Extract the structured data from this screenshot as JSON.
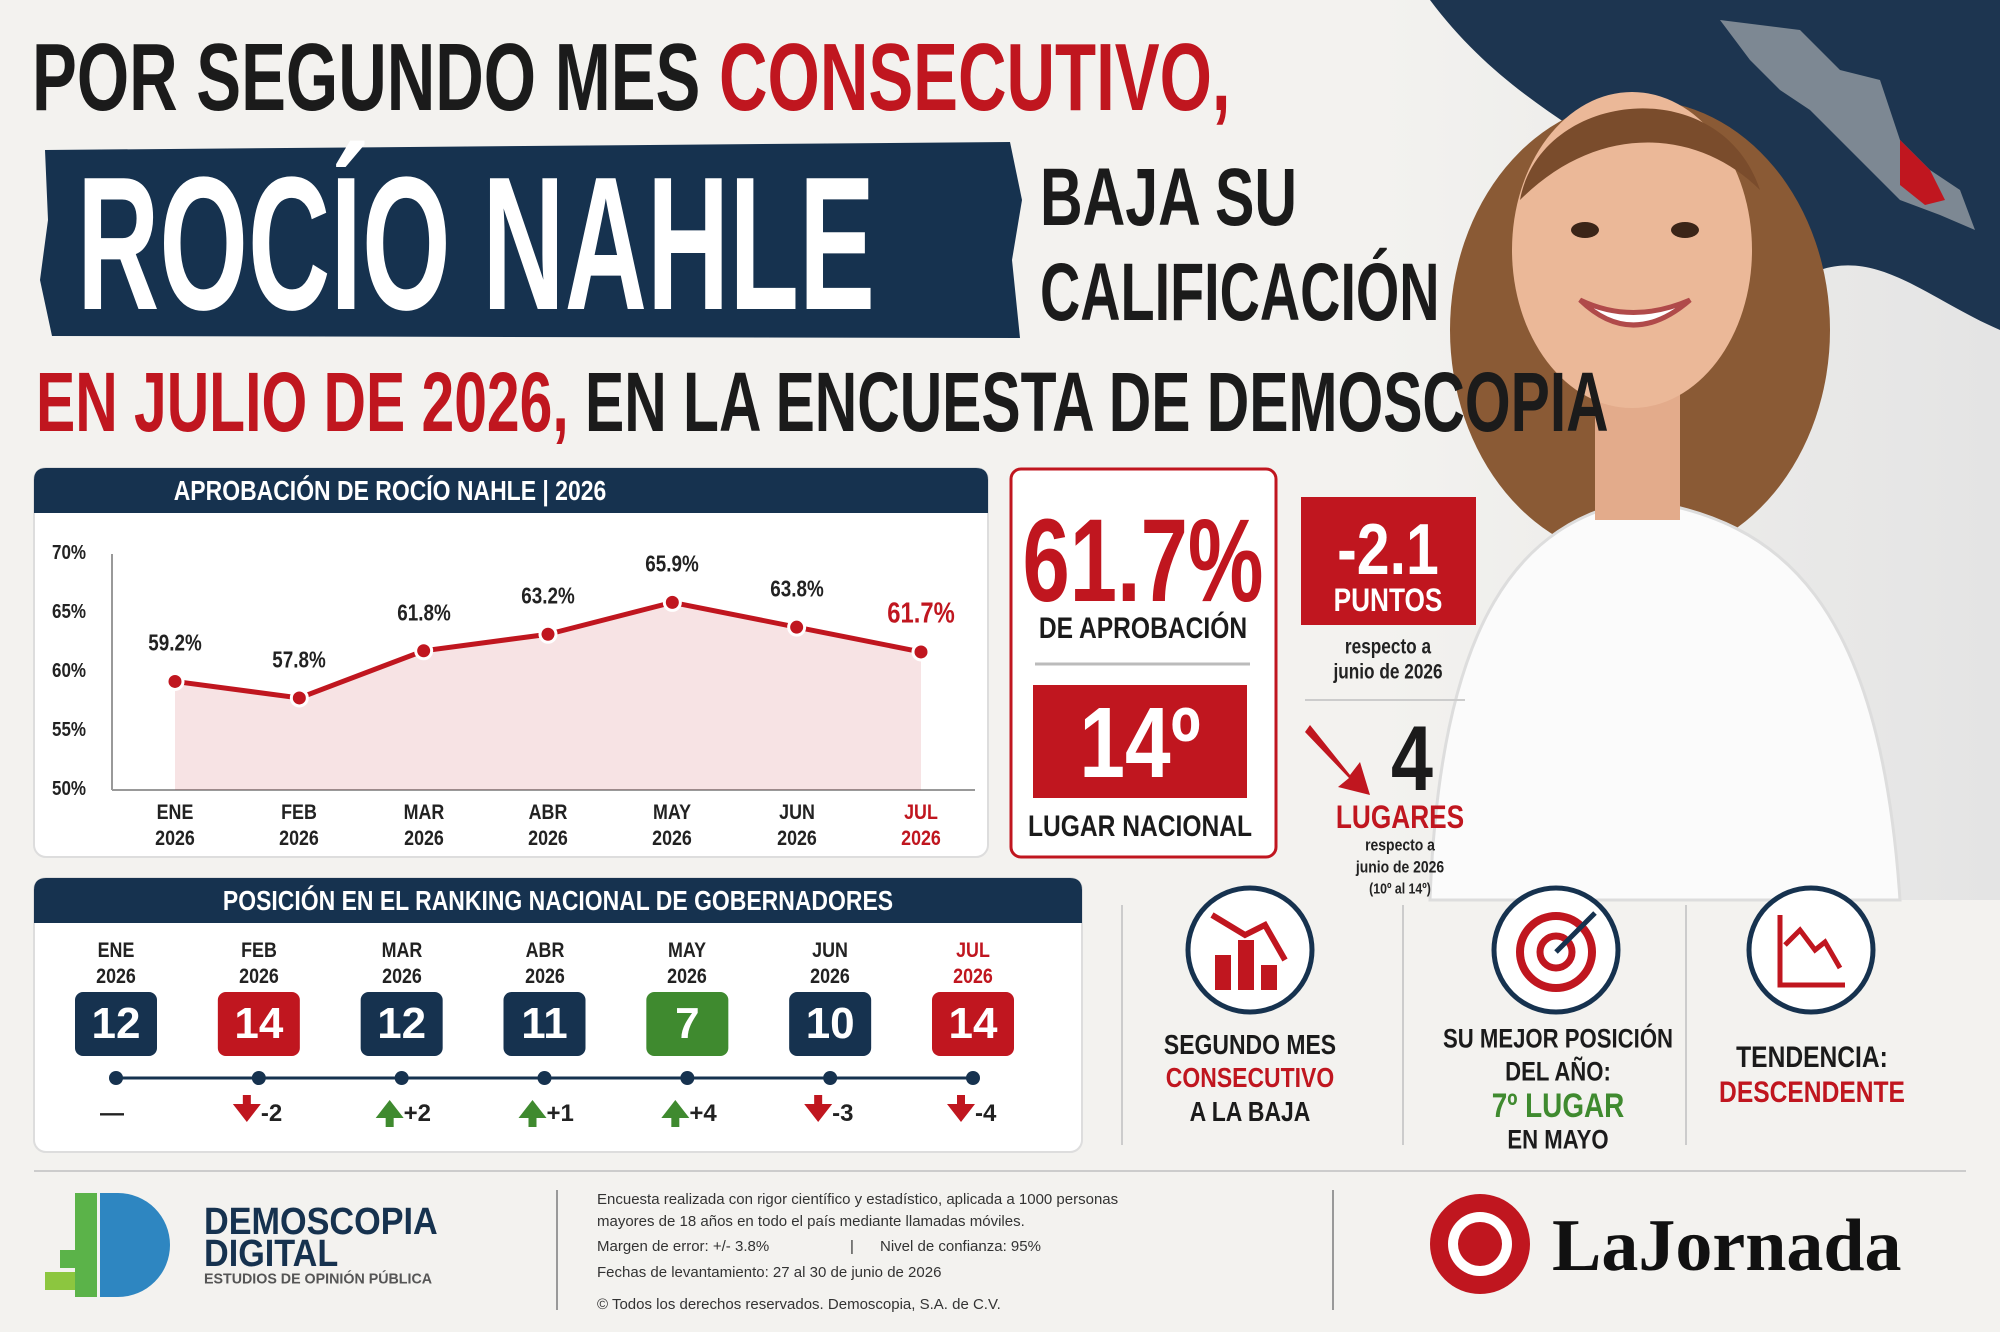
{
  "header": {
    "line1_a": "POR SEGUNDO MES ",
    "line1_b": "CONSECUTIVO,",
    "name": "ROCÍO NAHLE",
    "line2_a": "BAJA SU",
    "line2_b": "CALIFICACIÓN",
    "line3_a": "EN JULIO DE 2026,",
    "line3_b": " EN LA ENCUESTA DE DEMOSCOPIA"
  },
  "chart_data": {
    "type": "line",
    "title": "APROBACIÓN DE ROCÍO NAHLE | 2026",
    "categories": [
      "ENE 2026",
      "FEB 2026",
      "MAR 2026",
      "ABR 2026",
      "MAY 2026",
      "JUN 2026",
      "JUL 2026"
    ],
    "series": [
      {
        "name": "Aprobación",
        "color": "#c0161f",
        "values": [
          59.2,
          57.8,
          61.8,
          63.2,
          65.9,
          63.8,
          61.7
        ],
        "value_labels": [
          "59.2%",
          "57.8%",
          "61.8%",
          "63.2%",
          "65.9%",
          "63.8%",
          "61.7%"
        ]
      }
    ],
    "ylim": [
      50,
      70
    ],
    "yticks": [
      {
        "value": 50,
        "label": "50%"
      },
      {
        "value": 55,
        "label": "55%"
      },
      {
        "value": 60,
        "label": "60%"
      },
      {
        "value": 65,
        "label": "65%"
      },
      {
        "value": 70,
        "label": "70%"
      }
    ],
    "grid": false
  },
  "stats": {
    "approval": "61.7%",
    "approval_label": "DE APROBACIÓN",
    "rank": "14º",
    "rank_label": "LUGAR NACIONAL",
    "change": "-2.1",
    "change_unit": "PUNTOS",
    "change_note_a": "respecto a",
    "change_note_b": "junio de 2026",
    "places": "4",
    "places_unit": "LUGARES",
    "places_note_a": "respecto a",
    "places_note_b": "junio de 2026",
    "places_detail": "(10º al 14º)"
  },
  "ranking": {
    "title": "POSICIÓN EN EL RANKING NACIONAL DE GOBERNADORES",
    "items": [
      {
        "period": "ENE 2026",
        "position": 12,
        "change": "—",
        "color": "#16324f"
      },
      {
        "period": "FEB 2026",
        "position": 14,
        "change": "-2",
        "color": "#c0161f"
      },
      {
        "period": "MAR 2026",
        "position": 12,
        "change": "+2",
        "color": "#16324f"
      },
      {
        "period": "ABR 2026",
        "position": 11,
        "change": "+1",
        "color": "#16324f"
      },
      {
        "period": "MAY 2026",
        "position": 7,
        "change": "+4",
        "color": "#3f8a2f"
      },
      {
        "period": "JUN 2026",
        "position": 10,
        "change": "-3",
        "color": "#16324f"
      },
      {
        "period": "JUL 2026",
        "position": 14,
        "change": "-4",
        "color": "#c0161f"
      }
    ]
  },
  "highlights": [
    {
      "a": "SEGUNDO MES",
      "b": "CONSECUTIVO",
      "c": "A LA BAJA"
    },
    {
      "a": "SU MEJOR POSICIÓN",
      "b": "DEL AÑO:",
      "c": "7º LUGAR",
      "d": "EN MAYO"
    },
    {
      "a": "TENDENCIA:",
      "b": "DESCENDENTE"
    }
  ],
  "footer": {
    "logo_a": "DEMOSCOPIA",
    "logo_b": "DIGITAL",
    "logo_c": "ESTUDIOS DE OPINIÓN PÚBLICA",
    "note_1": "Encuesta realizada con rigor científico y estadístico, aplicada a 1000 personas",
    "note_2": "mayores de 18 años en todo el país mediante llamadas móviles.",
    "note_3a": "Margen de error: +/- 3.8%",
    "note_3b": "|",
    "note_3c": "Nivel de confianza: 95%",
    "note_4": "Fechas de levantamiento: 27 al 30 de junio de 2026",
    "note_5": "© Todos los derechos reservados. Demoscopia, S.A. de C.V.",
    "brand": "LaJornada"
  }
}
